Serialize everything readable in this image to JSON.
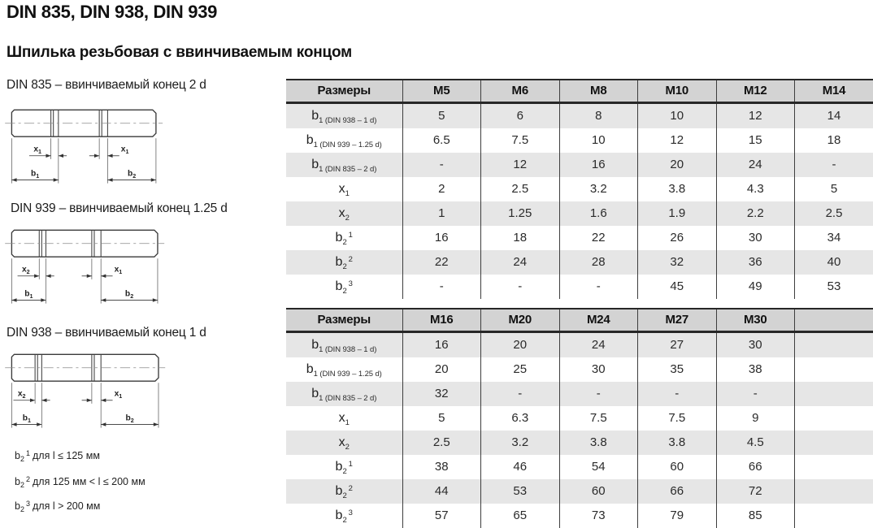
{
  "page": {
    "title": "DIN 835, DIN 938, DIN 939",
    "subtitle": "Шпилька резьбовая с ввинчиваемым концом"
  },
  "drawings": [
    {
      "caption": "DIN 835 – ввинчиваемый конец 2 d",
      "dim_x_left": {
        "base": "x",
        "sub": "1"
      },
      "dim_x_right": {
        "base": "x",
        "sub": "1"
      },
      "dim_b_left": {
        "base": "b",
        "sub": "1"
      },
      "dim_b_right": {
        "base": "b",
        "sub": "2"
      }
    },
    {
      "caption": "DIN 939 – ввинчиваемый конец 1.25 d",
      "dim_x_left": {
        "base": "x",
        "sub": "2"
      },
      "dim_x_right": {
        "base": "x",
        "sub": "1"
      },
      "dim_b_left": {
        "base": "b",
        "sub": "1"
      },
      "dim_b_right": {
        "base": "b",
        "sub": "2"
      }
    },
    {
      "caption": "DIN 938 – ввинчиваемый конец 1 d",
      "dim_x_left": {
        "base": "x",
        "sub": "2"
      },
      "dim_x_right": {
        "base": "x",
        "sub": "1"
      },
      "dim_b_left": {
        "base": "b",
        "sub": "1"
      },
      "dim_b_right": {
        "base": "b",
        "sub": "2"
      }
    }
  ],
  "footnotes": [
    {
      "base": "b",
      "sub": "2",
      "sup": "1",
      "text": "для l ≤ 125 мм"
    },
    {
      "base": "b",
      "sub": "2",
      "sup": "2",
      "text": "для 125 мм < l ≤ 200 мм"
    },
    {
      "base": "b",
      "sub": "2",
      "sup": "3",
      "text": "для l > 200 мм"
    }
  ],
  "tables": [
    {
      "header": [
        "Размеры",
        "M5",
        "M6",
        "M8",
        "M10",
        "M12",
        "M14"
      ],
      "rows": [
        {
          "label": {
            "base": "b",
            "sub": "1 (DIN 938 – 1 d)"
          },
          "values": [
            "5",
            "6",
            "8",
            "10",
            "12",
            "14"
          ]
        },
        {
          "label": {
            "base": "b",
            "sub": "1 (DIN 939 – 1.25 d)"
          },
          "values": [
            "6.5",
            "7.5",
            "10",
            "12",
            "15",
            "18"
          ]
        },
        {
          "label": {
            "base": "b",
            "sub": "1 (DIN 835 – 2 d)"
          },
          "values": [
            "-",
            "12",
            "16",
            "20",
            "24",
            "-"
          ]
        },
        {
          "label": {
            "base": "x",
            "sub": "1"
          },
          "values": [
            "2",
            "2.5",
            "3.2",
            "3.8",
            "4.3",
            "5"
          ]
        },
        {
          "label": {
            "base": "x",
            "sub": "2"
          },
          "values": [
            "1",
            "1.25",
            "1.6",
            "1.9",
            "2.2",
            "2.5"
          ]
        },
        {
          "label": {
            "base": "b",
            "sub": "2",
            "sup": "1"
          },
          "values": [
            "16",
            "18",
            "22",
            "26",
            "30",
            "34"
          ]
        },
        {
          "label": {
            "base": "b",
            "sub": "2",
            "sup": "2"
          },
          "values": [
            "22",
            "24",
            "28",
            "32",
            "36",
            "40"
          ]
        },
        {
          "label": {
            "base": "b",
            "sub": "2",
            "sup": "3"
          },
          "values": [
            "-",
            "-",
            "-",
            "45",
            "49",
            "53"
          ]
        }
      ]
    },
    {
      "header": [
        "Размеры",
        "M16",
        "M20",
        "M24",
        "M27",
        "M30",
        ""
      ],
      "rows": [
        {
          "label": {
            "base": "b",
            "sub": "1 (DIN 938 – 1 d)"
          },
          "values": [
            "16",
            "20",
            "24",
            "27",
            "30",
            ""
          ]
        },
        {
          "label": {
            "base": "b",
            "sub": "1 (DIN 939 – 1.25 d)"
          },
          "values": [
            "20",
            "25",
            "30",
            "35",
            "38",
            ""
          ]
        },
        {
          "label": {
            "base": "b",
            "sub": "1 (DIN 835 – 2 d)"
          },
          "values": [
            "32",
            "-",
            "-",
            "-",
            "-",
            ""
          ]
        },
        {
          "label": {
            "base": "x",
            "sub": "1"
          },
          "values": [
            "5",
            "6.3",
            "7.5",
            "7.5",
            "9",
            ""
          ]
        },
        {
          "label": {
            "base": "x",
            "sub": "2"
          },
          "values": [
            "2.5",
            "3.2",
            "3.8",
            "3.8",
            "4.5",
            ""
          ]
        },
        {
          "label": {
            "base": "b",
            "sub": "2",
            "sup": "1"
          },
          "values": [
            "38",
            "46",
            "54",
            "60",
            "66",
            ""
          ]
        },
        {
          "label": {
            "base": "b",
            "sub": "2",
            "sup": "2"
          },
          "values": [
            "44",
            "53",
            "60",
            "66",
            "72",
            ""
          ]
        },
        {
          "label": {
            "base": "b",
            "sub": "2",
            "sup": "3"
          },
          "values": [
            "57",
            "65",
            "73",
            "79",
            "85",
            ""
          ]
        }
      ]
    }
  ],
  "colors": {
    "header_bg": "#d3d3d3",
    "row_alt_bg": "#e6e6e6",
    "row_bg": "#ffffff",
    "border_dark": "#272727",
    "grid_line": "#3e3e3e",
    "drawing_line": "#3a3a3a"
  }
}
